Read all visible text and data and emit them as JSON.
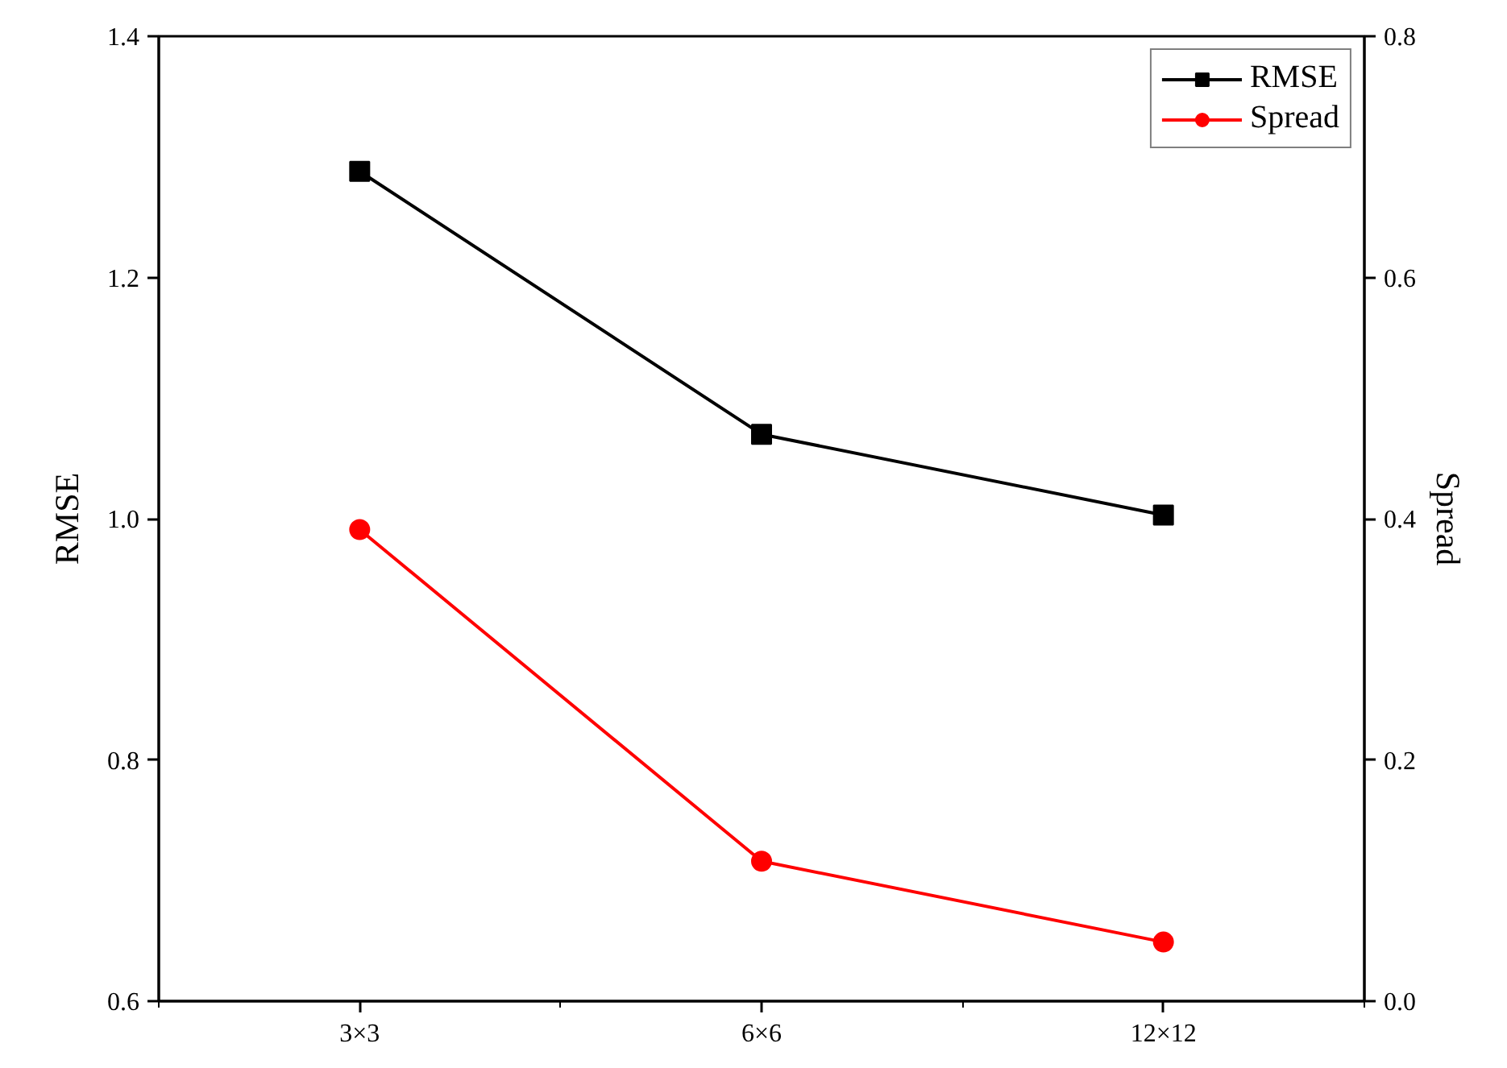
{
  "chart_data": {
    "type": "line",
    "categories": [
      "3×3",
      "6×6",
      "12×12"
    ],
    "ylabel": "RMSE",
    "y2label": "Spread",
    "ylim": [
      0.6,
      1.4
    ],
    "yticks": [
      0.6,
      0.8,
      {
        "value": 1,
        "label": "1.0"
      },
      1.2,
      1.4
    ],
    "y2lim": [
      0.0,
      0.8
    ],
    "y2ticks": [
      {
        "value": 0,
        "label": "0.0"
      },
      0.2,
      0.4,
      0.6,
      0.8
    ],
    "series": [
      {
        "name": "RMSE",
        "color": "#000000",
        "marker": "square",
        "values": [
          1.288,
          1.07,
          1.003
        ]
      },
      {
        "name": "Spread",
        "color": "#ff0000",
        "marker": "circle",
        "axis": "y2",
        "values": [
          0.391,
          0.116,
          0.049
        ]
      }
    ],
    "grid": false,
    "legend": "top right",
    "line_style": "solid"
  }
}
